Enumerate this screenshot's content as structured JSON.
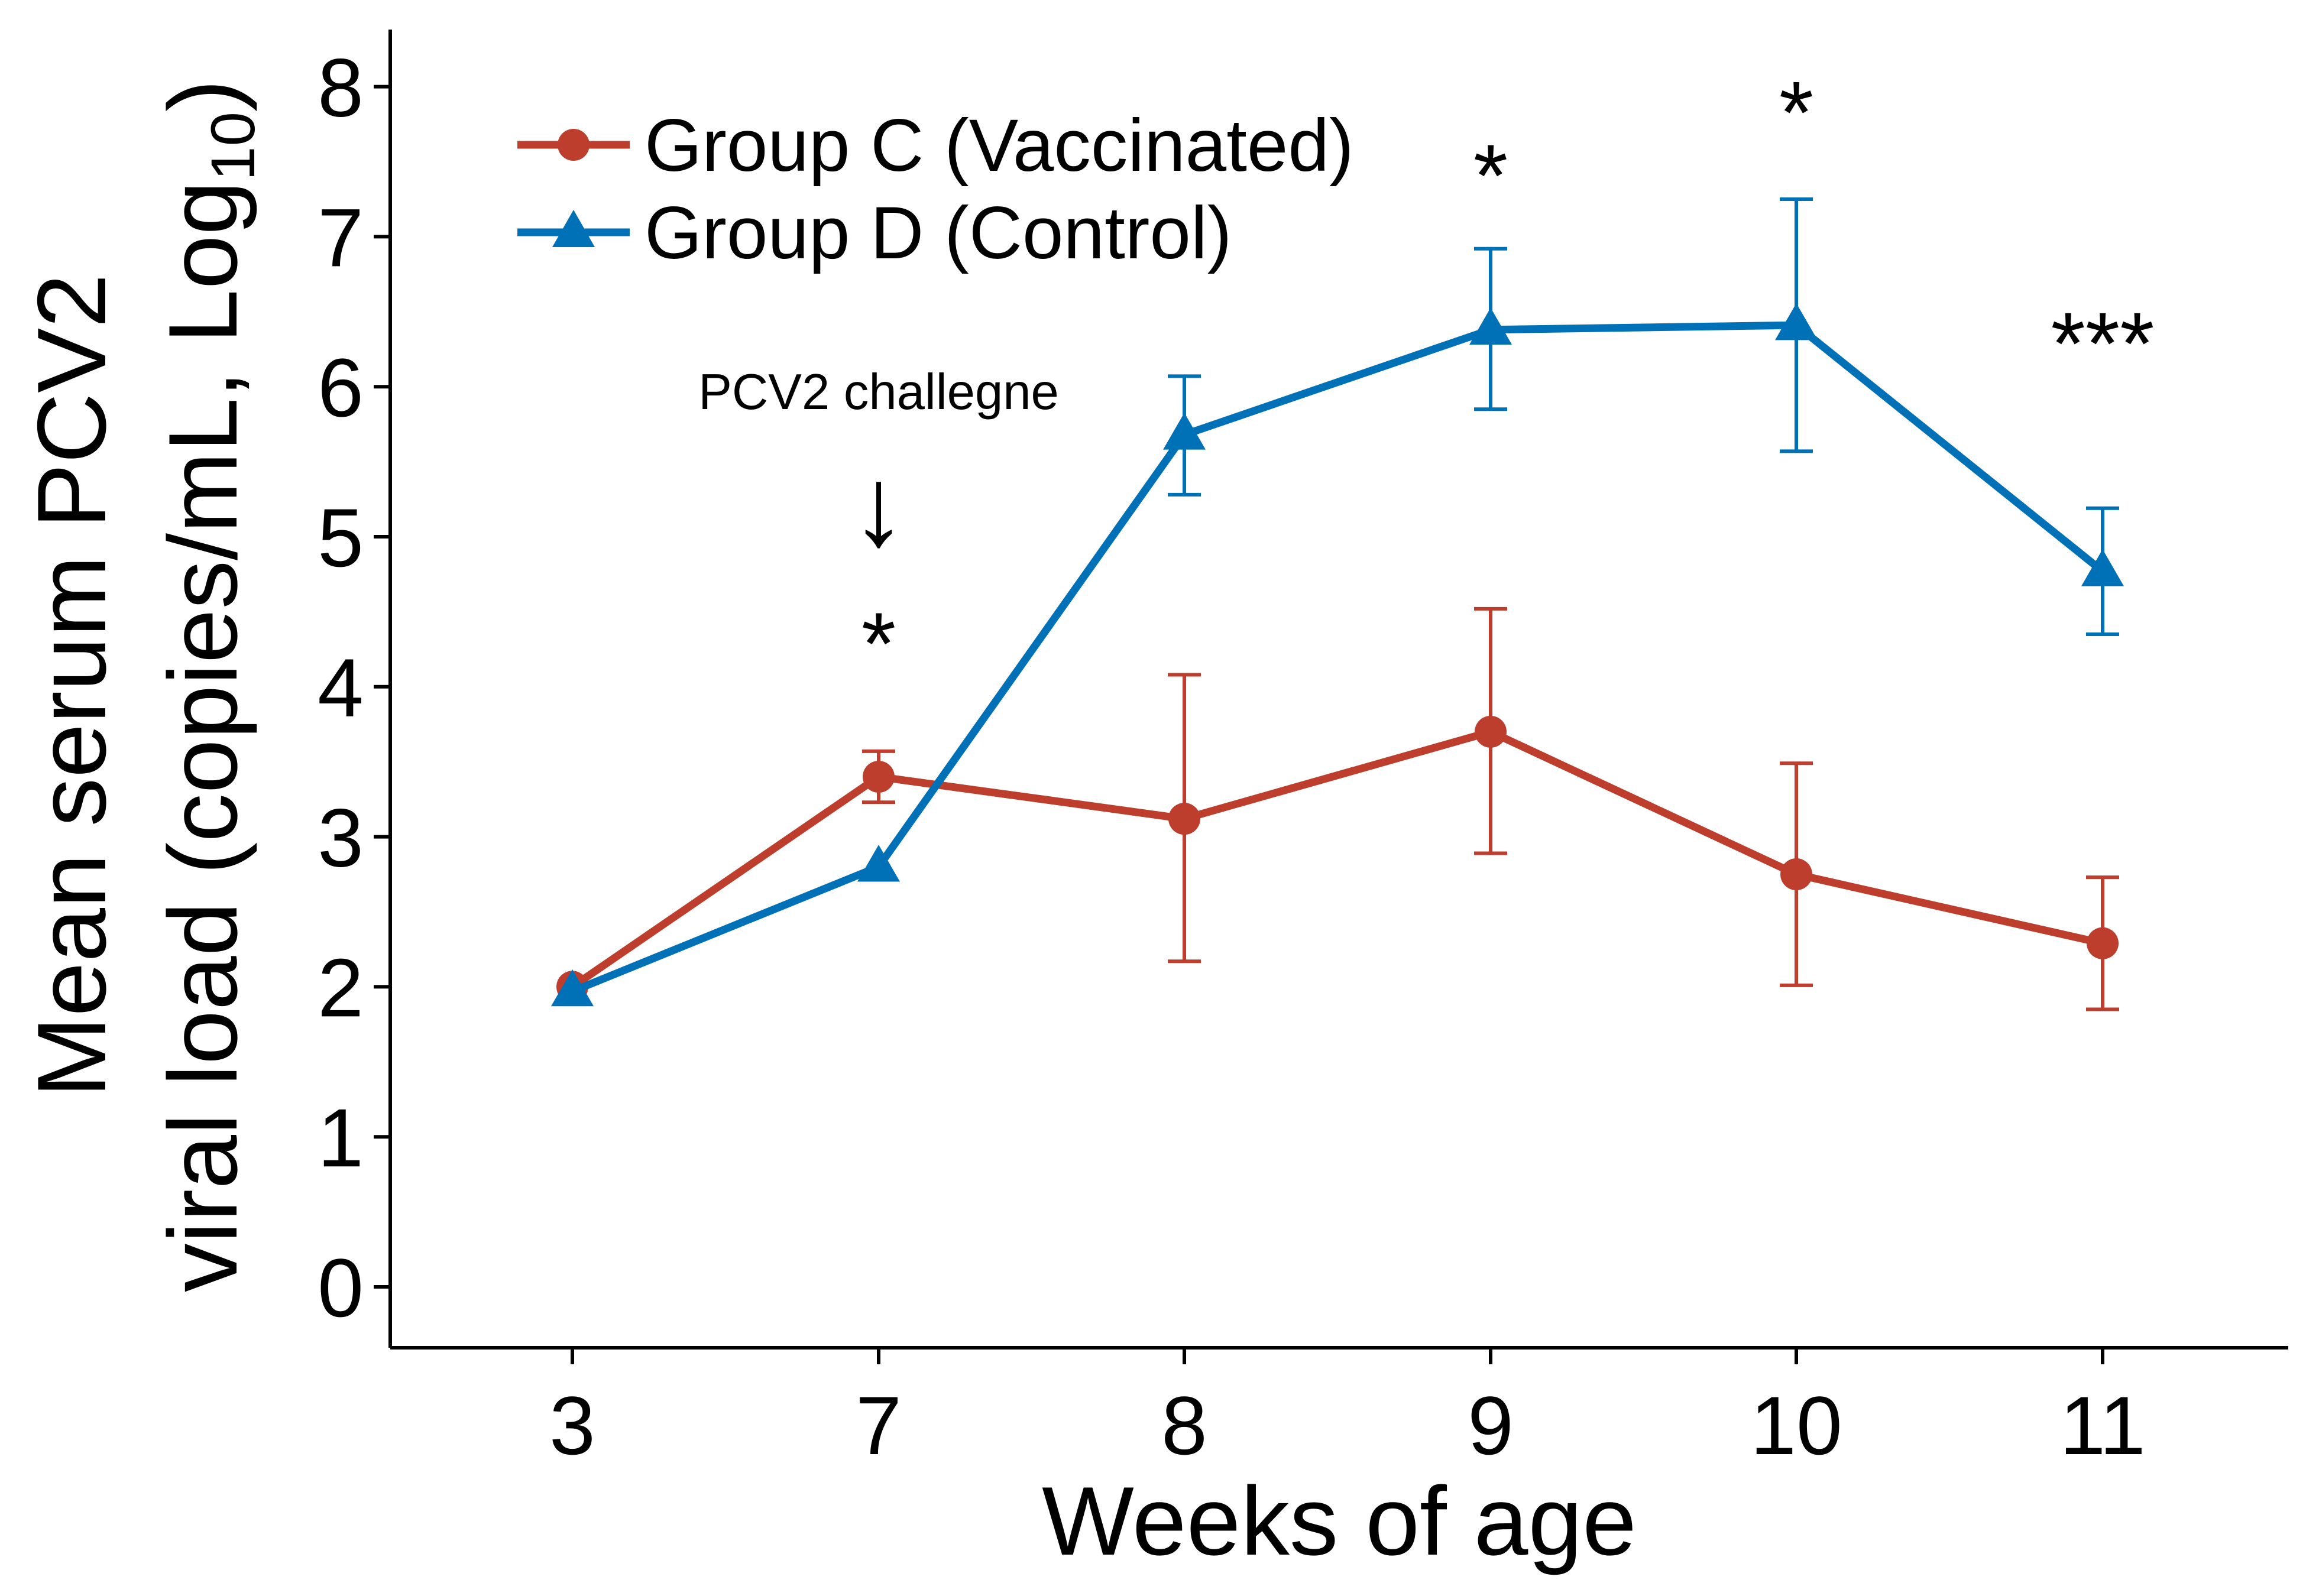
{
  "chart_data": {
    "type": "line",
    "title": "",
    "xlabel": "Weeks of age",
    "ylabel_line1": "Mean serum PCV2",
    "ylabel_line2_prefix": "viral load (copies/mL, Log",
    "ylabel_subscript": "10",
    "ylabel_line2_suffix": ")",
    "categories": [
      "3",
      "7",
      "8",
      "9",
      "10",
      "11"
    ],
    "ylim": [
      -0.4,
      8.4
    ],
    "yticks": [
      0,
      1,
      2,
      3,
      4,
      5,
      6,
      7,
      8
    ],
    "grid": false,
    "legend_position": "top-left",
    "series": [
      {
        "name": "Group C (Vaccinated)",
        "color": "#BD3E2C",
        "marker": "circle",
        "values": [
          2.0,
          3.4,
          3.12,
          3.7,
          2.75,
          2.29
        ],
        "error_upper": [
          null,
          3.57,
          4.08,
          4.52,
          3.49,
          2.73
        ],
        "error_lower": [
          null,
          3.23,
          2.17,
          2.89,
          2.01,
          1.85
        ]
      },
      {
        "name": "Group D (Control)",
        "color": "#0071B7",
        "marker": "triangle",
        "values": [
          1.97,
          2.8,
          5.68,
          6.38,
          6.41,
          4.77
        ],
        "error_upper": [
          null,
          null,
          6.07,
          6.92,
          7.25,
          5.19
        ],
        "error_lower": [
          null,
          null,
          5.28,
          5.85,
          5.57,
          4.35
        ]
      }
    ],
    "annotations": {
      "challenge_text": "PCV2 challegne",
      "challenge_arrow": "↓",
      "significance": [
        {
          "category": "7",
          "label": "*",
          "y": 4.3
        },
        {
          "category": "9",
          "label": "*",
          "y": 7.42
        },
        {
          "category": "10",
          "label": "*",
          "y": 7.84
        },
        {
          "category": "11",
          "label": "***",
          "y": 6.3
        }
      ]
    }
  }
}
